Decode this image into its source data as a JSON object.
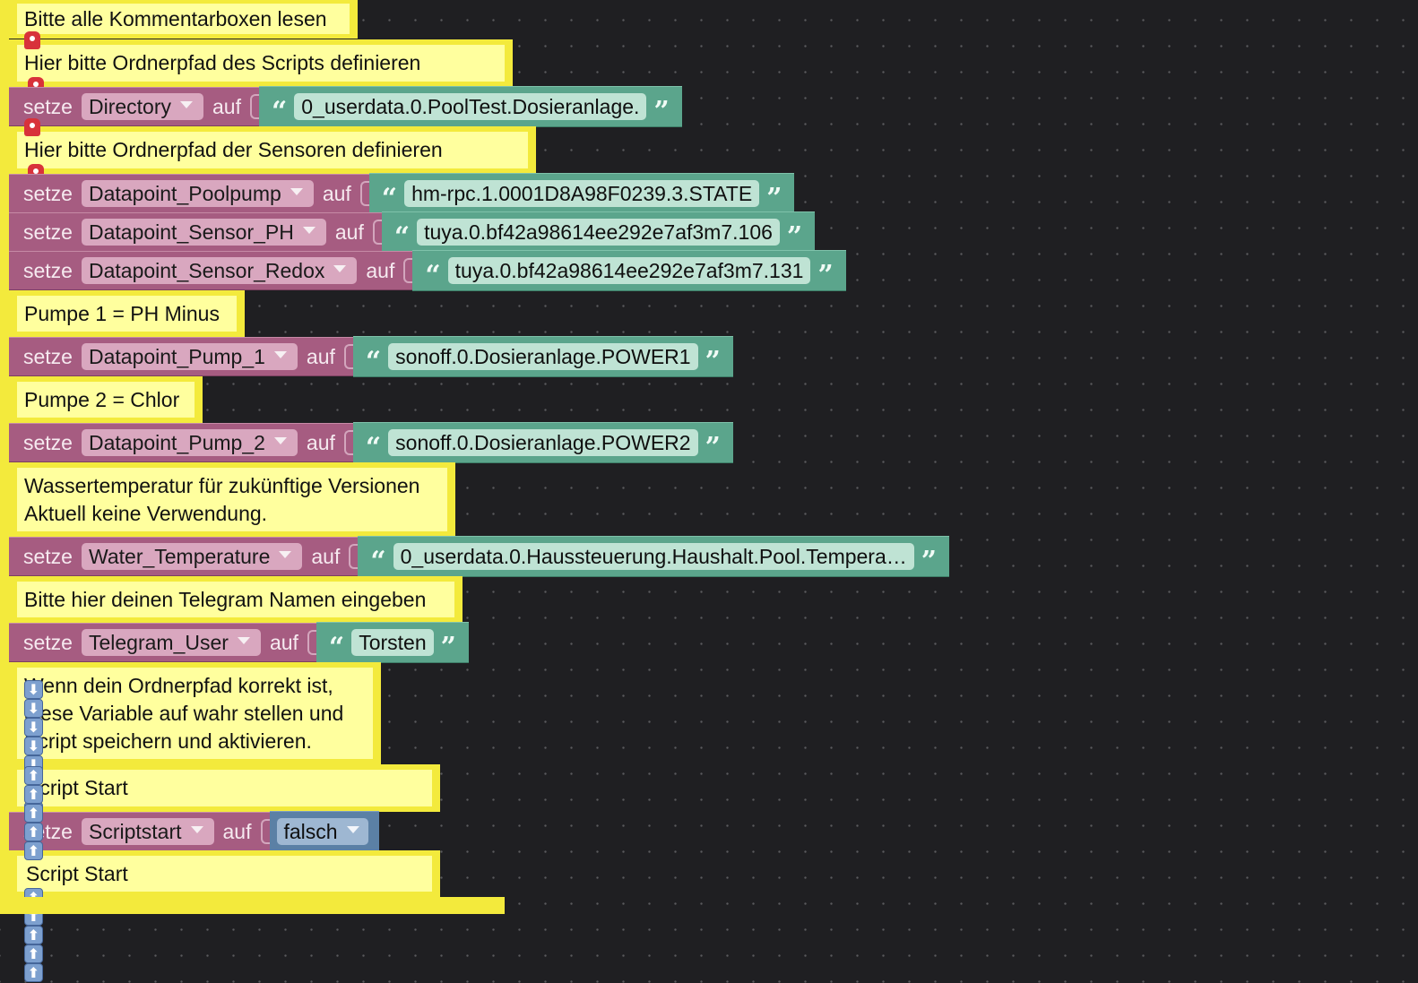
{
  "comments": {
    "c1": "Bitte alle Kommentarboxen lesen",
    "c2": "Hier bitte Ordnerpfad des Scripts definieren",
    "c3": "Hier bitte Ordnerpfad der Sensoren definieren",
    "c4": "Pumpe 1 = PH Minus",
    "c5": "Pumpe 2 = Chlor",
    "c6_line1": "Wassertemperatur für zukünftige Versionen",
    "c6_line2": "Aktuell keine Verwendung.",
    "c7": "Bitte hier deinen Telegram Namen eingeben",
    "c8_line1": "Wenn dein Ordnerpfad korrekt ist,",
    "c8_line2": "diese Variable auf wahr stellen und",
    "c8_line3": "Script speichern und aktivieren.",
    "c9": "Script Start",
    "c10": "Script Start"
  },
  "keywords": {
    "set": "setze",
    "to": "auf"
  },
  "icons": {
    "siren": "siren-icon",
    "down": "down-arrow-icon",
    "up": "up-arrow-icon",
    "down_glyph": "⬇",
    "up_glyph": "⬆"
  },
  "sets": [
    {
      "var": "Directory",
      "value": "0_userdata.0.PoolTest.Dosieranlage."
    },
    {
      "var": "Datapoint_Poolpump",
      "value": "hm-rpc.1.0001D8A98F0239.3.STATE"
    },
    {
      "var": "Datapoint_Sensor_PH",
      "value": "tuya.0.bf42a98614ee292e7af3m7.106"
    },
    {
      "var": "Datapoint_Sensor_Redox",
      "value": "tuya.0.bf42a98614ee292e7af3m7.131"
    },
    {
      "var": "Datapoint_Pump_1",
      "value": "sonoff.0.Dosieranlage.POWER1"
    },
    {
      "var": "Datapoint_Pump_2",
      "value": "sonoff.0.Dosieranlage.POWER2"
    },
    {
      "var": "Water_Temperature",
      "value": "0_userdata.0.Haussteuerung.Haushalt.Pool.Tempera…"
    },
    {
      "var": "Telegram_User",
      "value": "Torsten"
    },
    {
      "var": "Scriptstart",
      "value": "falsch"
    }
  ],
  "colors": {
    "comment_border": "#f3ea3c",
    "comment_fill": "#ffff9e",
    "variable": "#a65c81",
    "text": "#5ba58c",
    "logic": "#5b80a5",
    "background": "#1f1f22"
  }
}
